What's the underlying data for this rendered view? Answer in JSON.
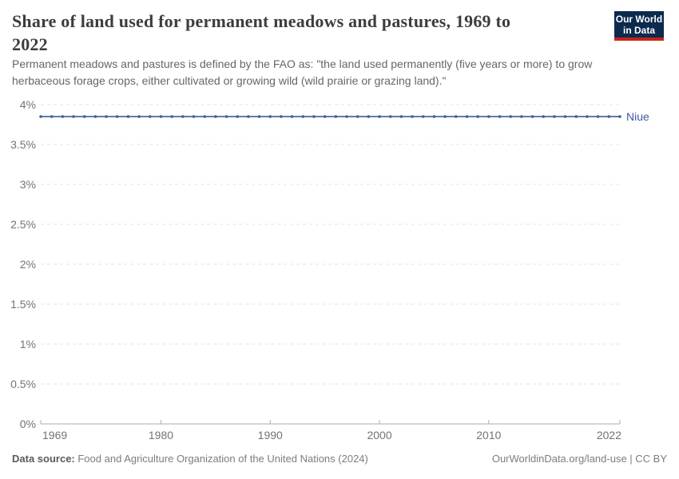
{
  "header": {
    "title": "Share of land used for permanent meadows and pastures, 1969 to 2022",
    "subtitle": "Permanent meadows and pastures is defined by the FAO as: \"the land used permanently (five years or more) to grow herbaceous forage crops, either cultivated or growing wild (wild prairie or grazing land).\"",
    "logo": {
      "line1": "Our World",
      "line2": "in Data"
    }
  },
  "chart_data": {
    "type": "line",
    "title": "Share of land used for permanent meadows and pastures, 1969 to 2022",
    "xlabel": "",
    "ylabel": "",
    "xlim": [
      1969,
      2022
    ],
    "ylim": [
      0,
      4
    ],
    "grid": "dashed-horizontal",
    "legend_position": "end-of-line-label",
    "x": [
      1969,
      1970,
      1971,
      1972,
      1973,
      1974,
      1975,
      1976,
      1977,
      1978,
      1979,
      1980,
      1981,
      1982,
      1983,
      1984,
      1985,
      1986,
      1987,
      1988,
      1989,
      1990,
      1991,
      1992,
      1993,
      1994,
      1995,
      1996,
      1997,
      1998,
      1999,
      2000,
      2001,
      2002,
      2003,
      2004,
      2005,
      2006,
      2007,
      2008,
      2009,
      2010,
      2011,
      2012,
      2013,
      2014,
      2015,
      2016,
      2017,
      2018,
      2019,
      2020,
      2021,
      2022
    ],
    "series": [
      {
        "name": "Niue",
        "color": "#4c6a9c",
        "marker_color": "#3f5c99",
        "label_color": "#3d5a9e",
        "values": [
          3.85,
          3.85,
          3.85,
          3.85,
          3.85,
          3.85,
          3.85,
          3.85,
          3.85,
          3.85,
          3.85,
          3.85,
          3.85,
          3.85,
          3.85,
          3.85,
          3.85,
          3.85,
          3.85,
          3.85,
          3.85,
          3.85,
          3.85,
          3.85,
          3.85,
          3.85,
          3.85,
          3.85,
          3.85,
          3.85,
          3.85,
          3.85,
          3.85,
          3.85,
          3.85,
          3.85,
          3.85,
          3.85,
          3.85,
          3.85,
          3.85,
          3.85,
          3.85,
          3.85,
          3.85,
          3.85,
          3.85,
          3.85,
          3.85,
          3.85,
          3.85,
          3.85,
          3.85,
          3.85
        ]
      }
    ],
    "yticks": [
      {
        "value": 0,
        "label": "0%"
      },
      {
        "value": 0.5,
        "label": "0.5%"
      },
      {
        "value": 1,
        "label": "1%"
      },
      {
        "value": 1.5,
        "label": "1.5%"
      },
      {
        "value": 2,
        "label": "2%"
      },
      {
        "value": 2.5,
        "label": "2.5%"
      },
      {
        "value": 3,
        "label": "3%"
      },
      {
        "value": 3.5,
        "label": "3.5%"
      },
      {
        "value": 4,
        "label": "4%"
      }
    ],
    "xticks": [
      {
        "value": 1969,
        "label": "1969"
      },
      {
        "value": 1980,
        "label": "1980"
      },
      {
        "value": 1990,
        "label": "1990"
      },
      {
        "value": 2000,
        "label": "2000"
      },
      {
        "value": 2010,
        "label": "2010"
      },
      {
        "value": 2022,
        "label": "2022"
      }
    ]
  },
  "footer": {
    "source_label": "Data source:",
    "source_text": " Food and Agriculture Organization of the United Nations (2024)",
    "link_text": "OurWorldinData.org/land-use | CC BY"
  },
  "colors": {
    "logo_navy": "#0c2a4e",
    "logo_red": "#c7241a",
    "title_text": "#3d3d3d",
    "subtitle_text": "#666666",
    "axis_text": "#737373",
    "gridline": "#e3e3e3",
    "axis_line": "#adadad",
    "line": "#4c6a9c",
    "entity_label": "#3d5a9e"
  }
}
